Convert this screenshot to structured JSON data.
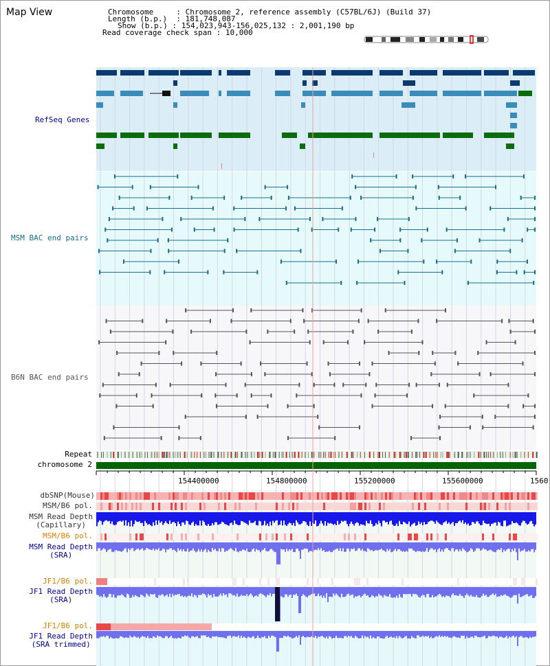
{
  "title": "Map View",
  "info": {
    "chromosome_key": "Chromosome",
    "chromosome_value": "Chromosome 2, reference assembly (C57BL/6J) (Build 37)",
    "length_key": "Length (b.p.)",
    "length_value": "181,748,087",
    "show_key": "Show (b.p.)",
    "show_value": "154,023,943-156,025,132 : 2,001,190 bp",
    "coverage_key": "Read coverage check span",
    "coverage_value": "10,000"
  },
  "tracks": {
    "refseq": "RefSeq Genes",
    "msm_bac": "MSM BAC end pairs",
    "b6n_bac": "B6N BAC end pairs",
    "repeat": "Repeat",
    "chromosome": "chromosome 2",
    "dbsnp": "dbSNP(Mouse)",
    "msm_pol1": "MSM/B6 pol.",
    "msm_depth_cap_1": "MSM Read Depth",
    "msm_depth_cap_2": "(Capillary)",
    "msm_pol2": "MSM/B6 pol.",
    "msm_depth_sra_1": "MSM Read Depth",
    "msm_depth_sra_2": "(SRA)",
    "jf1_pol1": "JF1/B6 pol.",
    "jf1_depth_sra_1": "JF1 Read Depth",
    "jf1_depth_sra_2": "(SRA)",
    "jf1_pol2": "JF1/B6 pol.",
    "jf1_depth_trim_1": "JF1 Read Depth",
    "jf1_depth_trim_2": "(SRA trimmed)"
  },
  "axis": {
    "ticks": [
      "154400000",
      "154800000",
      "155200000",
      "155600000",
      "1560"
    ]
  },
  "colors": {
    "refseq_dark": "#0b3a6e",
    "refseq_mid": "#3b8cb8",
    "refseq_green": "#0c6b0c",
    "msm_bac": "#1a6e8c",
    "b6n_bac": "#555555",
    "chrom_bar": "#006400",
    "label_blue": "#000099",
    "label_teal": "#1a6e8c",
    "label_orange": "#e08000",
    "depth_blue": "#0000dd"
  }
}
